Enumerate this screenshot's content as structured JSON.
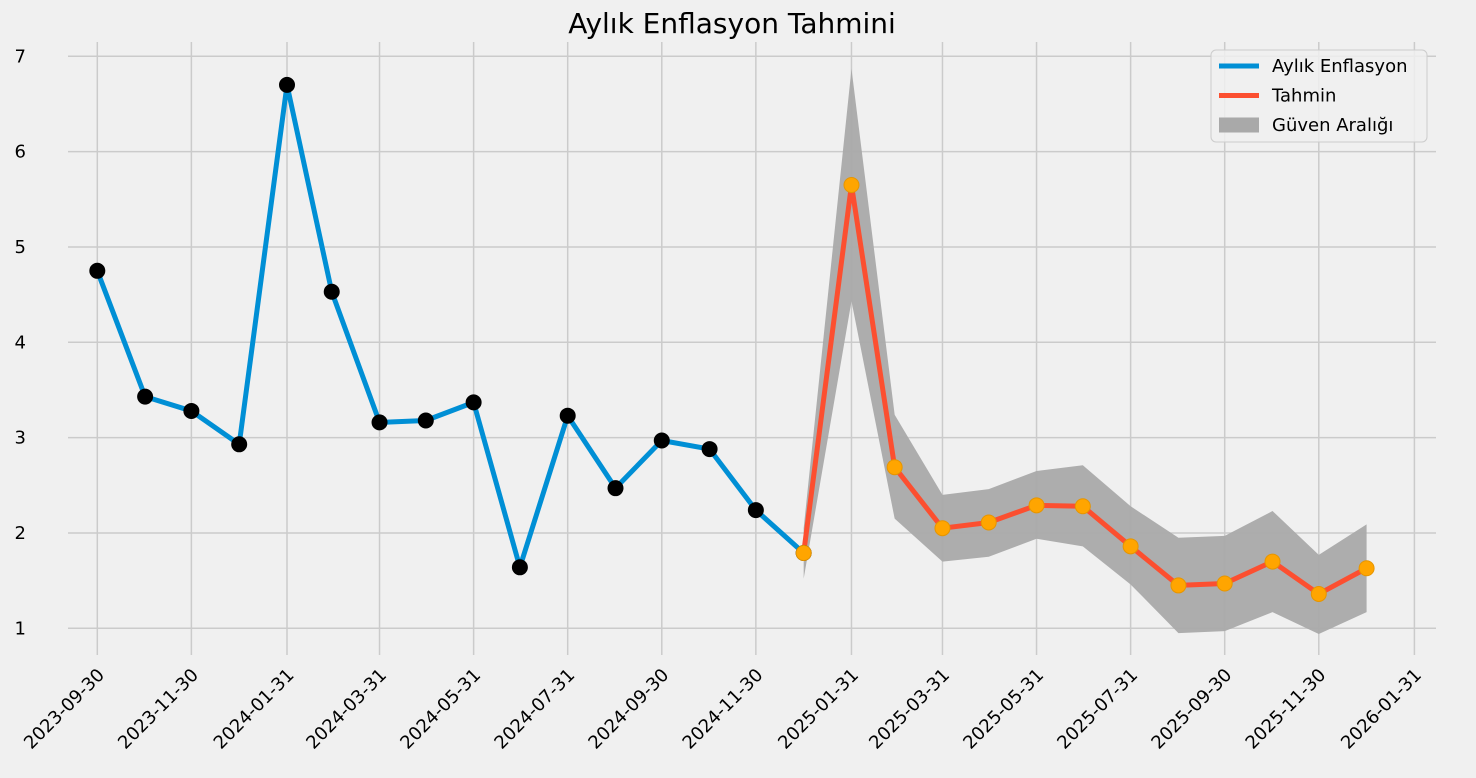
{
  "chart_data": {
    "type": "line",
    "title": "Aylık Enflasyon Tahmini",
    "xlabel": "",
    "ylabel": "",
    "xlim": [
      "2023-09-11",
      "2026-02-14"
    ],
    "ylim": [
      0.72,
      7.15
    ],
    "grid": true,
    "legend_position": "top-right",
    "x_tick_labels": [
      "2023-09-30",
      "2023-11-30",
      "2024-01-31",
      "2024-03-31",
      "2024-05-31",
      "2024-07-31",
      "2024-09-30",
      "2024-11-30",
      "2025-01-31",
      "2025-03-31",
      "2025-05-31",
      "2025-07-31",
      "2025-09-30",
      "2025-11-30",
      "2026-01-31"
    ],
    "y_ticks": [
      1,
      2,
      3,
      4,
      5,
      6,
      7
    ],
    "series": [
      {
        "name": "Aylık Enflasyon",
        "color": "#008fd5",
        "marker_color": "#000000",
        "x": [
          "2023-09-30",
          "2023-10-31",
          "2023-11-30",
          "2023-12-31",
          "2024-01-31",
          "2024-02-29",
          "2024-03-31",
          "2024-04-30",
          "2024-05-31",
          "2024-06-30",
          "2024-07-31",
          "2024-08-31",
          "2024-09-30",
          "2024-10-31",
          "2024-11-30",
          "2024-12-31"
        ],
        "values": [
          4.75,
          3.43,
          3.28,
          2.93,
          6.7,
          4.53,
          3.16,
          3.18,
          3.37,
          1.64,
          3.23,
          2.47,
          2.97,
          2.88,
          2.24,
          1.79
        ]
      },
      {
        "name": "Tahmin",
        "color": "#fc4f30",
        "marker_color": "#ffa500",
        "x": [
          "2024-12-31",
          "2025-01-31",
          "2025-02-28",
          "2025-03-31",
          "2025-04-30",
          "2025-05-31",
          "2025-06-30",
          "2025-07-31",
          "2025-08-31",
          "2025-09-30",
          "2025-10-31",
          "2025-11-30",
          "2025-12-31"
        ],
        "values": [
          1.79,
          5.65,
          2.69,
          2.05,
          2.11,
          2.29,
          2.28,
          1.86,
          1.45,
          1.47,
          1.7,
          1.36,
          1.63
        ]
      }
    ],
    "confidence_band": {
      "name": "Güven Aralığı",
      "color": "#a9a9a9",
      "x": [
        "2024-12-31",
        "2025-01-31",
        "2025-02-28",
        "2025-03-31",
        "2025-04-30",
        "2025-05-31",
        "2025-06-30",
        "2025-07-31",
        "2025-08-31",
        "2025-09-30",
        "2025-10-31",
        "2025-11-30",
        "2025-12-31"
      ],
      "lower": [
        1.52,
        4.43,
        2.15,
        1.7,
        1.75,
        1.94,
        1.86,
        1.46,
        0.95,
        0.97,
        1.17,
        0.94,
        1.17
      ],
      "upper": [
        2.05,
        6.87,
        3.24,
        2.4,
        2.46,
        2.65,
        2.71,
        2.28,
        1.95,
        1.97,
        2.23,
        1.77,
        2.09
      ]
    }
  }
}
